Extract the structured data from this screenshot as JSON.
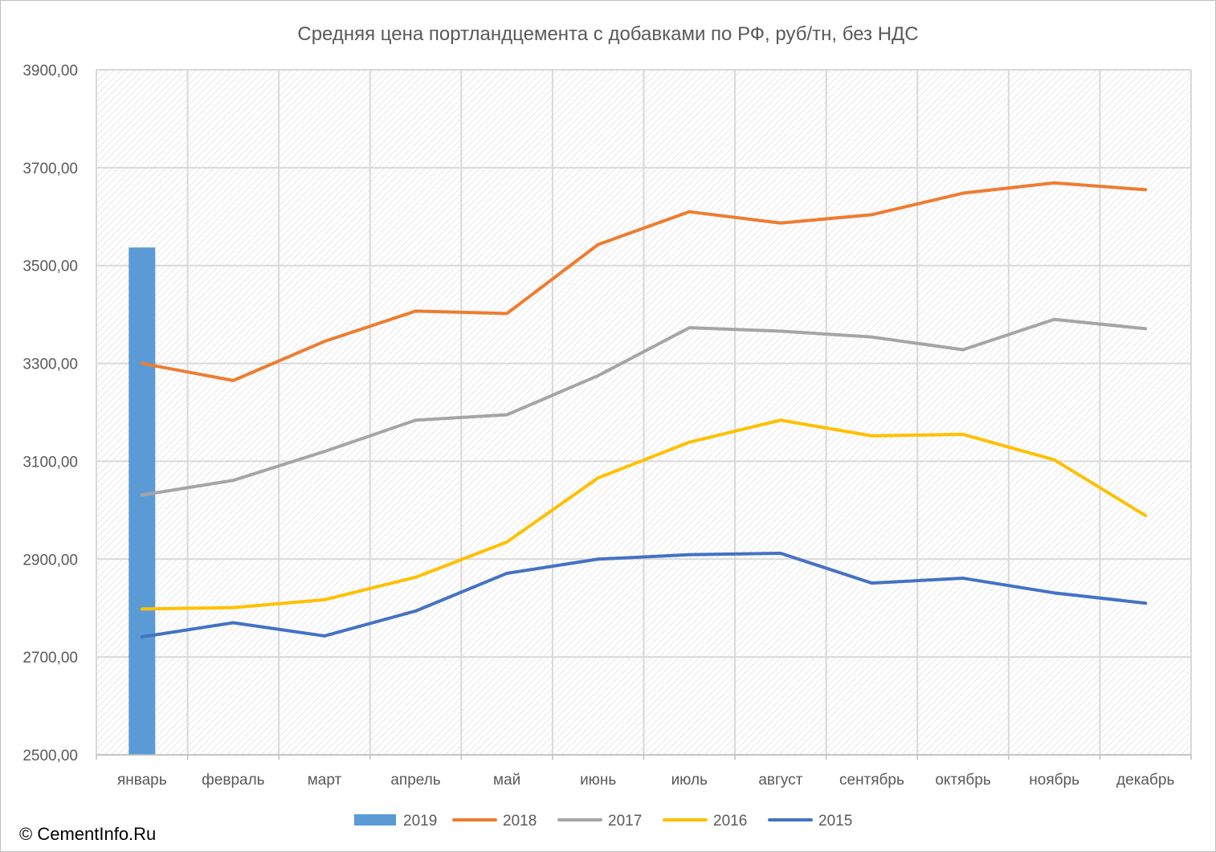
{
  "chart_data": {
    "type": "line",
    "title": "Средняя цена портландцемента с добавками по РФ, руб/тн, без НДС",
    "categories": [
      "январь",
      "февраль",
      "март",
      "апрель",
      "май",
      "июнь",
      "июль",
      "август",
      "сентябрь",
      "октябрь",
      "ноябрь",
      "декабрь"
    ],
    "ylim": [
      2500,
      3900
    ],
    "yticks": [
      "2500,00",
      "2700,00",
      "2900,00",
      "3100,00",
      "3300,00",
      "3500,00",
      "3700,00",
      "3900,00"
    ],
    "ytick_values": [
      2500,
      2700,
      2900,
      3100,
      3300,
      3500,
      3700,
      3900
    ],
    "grid": true,
    "legend_position": "bottom",
    "series": [
      {
        "name": "2019",
        "kind": "bar",
        "color": "#5b9bd5",
        "values": [
          3537,
          null,
          null,
          null,
          null,
          null,
          null,
          null,
          null,
          null,
          null,
          null
        ]
      },
      {
        "name": "2018",
        "kind": "line",
        "color": "#ed7d31",
        "values": [
          3300,
          3265,
          3345,
          3407,
          3402,
          3543,
          3610,
          3587,
          3604,
          3648,
          3669,
          3655
        ]
      },
      {
        "name": "2017",
        "kind": "line",
        "color": "#a5a5a5",
        "values": [
          3031,
          3061,
          3120,
          3184,
          3195,
          3275,
          3373,
          3366,
          3354,
          3328,
          3390,
          3371
        ]
      },
      {
        "name": "2016",
        "kind": "line",
        "color": "#ffc000",
        "values": [
          2798,
          2801,
          2817,
          2863,
          2935,
          3066,
          3139,
          3184,
          3152,
          3155,
          3103,
          2989
        ]
      },
      {
        "name": "2015",
        "kind": "line",
        "color": "#4472c4",
        "values": [
          2741,
          2770,
          2743,
          2794,
          2871,
          2900,
          2909,
          2912,
          2851,
          2861,
          2831,
          2810
        ]
      }
    ]
  },
  "colors": {
    "grid": "#d9d9d9",
    "plot_hatch": "#ededed",
    "text": "#595959"
  },
  "copyright": "© CementInfo.Ru"
}
